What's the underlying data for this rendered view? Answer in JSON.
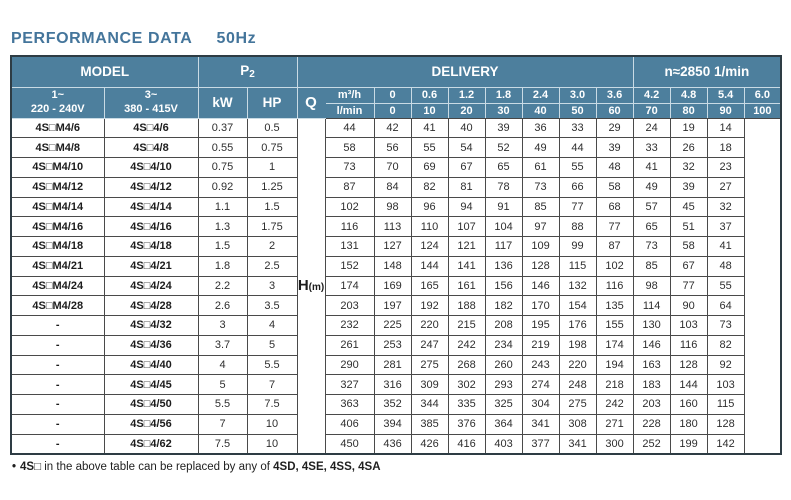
{
  "title": "PERFORMANCE DATA",
  "frequency": "50Hz",
  "colors": {
    "header_bg": "#4d7f9d",
    "title_text": "#44759b"
  },
  "table": {
    "header": {
      "model_label": "MODEL",
      "p2_base": "P",
      "p2_sub": "2",
      "delivery_label": "DELIVERY",
      "speed_label": "n≈2850 1/min",
      "single_phase_line1": "1~",
      "single_phase_line2": "220 - 240V",
      "three_phase_line1": "3~",
      "three_phase_line2": "380 - 415V",
      "kw_label": "kW",
      "hp_label": "HP",
      "q_label": "Q",
      "unit_m3h": "m³/h",
      "unit_lmin": "l/min",
      "flow_m3h": [
        "0",
        "0.6",
        "1.2",
        "1.8",
        "2.4",
        "3.0",
        "3.6",
        "4.2",
        "4.8",
        "5.4",
        "6.0"
      ],
      "flow_lmin": [
        "0",
        "10",
        "20",
        "30",
        "40",
        "50",
        "60",
        "70",
        "80",
        "90",
        "100"
      ]
    },
    "head_label": "H",
    "head_unit": "(m)",
    "rows": [
      {
        "model_1ph": "4S□M4/6",
        "model_3ph": "4S□4/6",
        "kw": "0.37",
        "hp": "0.5",
        "h_values": [
          "44",
          "42",
          "41",
          "40",
          "39",
          "36",
          "33",
          "29",
          "24",
          "19",
          "14"
        ]
      },
      {
        "model_1ph": "4S□M4/8",
        "model_3ph": "4S□4/8",
        "kw": "0.55",
        "hp": "0.75",
        "h_values": [
          "58",
          "56",
          "55",
          "54",
          "52",
          "49",
          "44",
          "39",
          "33",
          "26",
          "18"
        ]
      },
      {
        "model_1ph": "4S□M4/10",
        "model_3ph": "4S□4/10",
        "kw": "0.75",
        "hp": "1",
        "h_values": [
          "73",
          "70",
          "69",
          "67",
          "65",
          "61",
          "55",
          "48",
          "41",
          "32",
          "23"
        ]
      },
      {
        "model_1ph": "4S□M4/12",
        "model_3ph": "4S□4/12",
        "kw": "0.92",
        "hp": "1.25",
        "h_values": [
          "87",
          "84",
          "82",
          "81",
          "78",
          "73",
          "66",
          "58",
          "49",
          "39",
          "27"
        ]
      },
      {
        "model_1ph": "4S□M4/14",
        "model_3ph": "4S□4/14",
        "kw": "1.1",
        "hp": "1.5",
        "h_values": [
          "102",
          "98",
          "96",
          "94",
          "91",
          "85",
          "77",
          "68",
          "57",
          "45",
          "32"
        ]
      },
      {
        "model_1ph": "4S□M4/16",
        "model_3ph": "4S□4/16",
        "kw": "1.3",
        "hp": "1.75",
        "h_values": [
          "116",
          "113",
          "110",
          "107",
          "104",
          "97",
          "88",
          "77",
          "65",
          "51",
          "37"
        ]
      },
      {
        "model_1ph": "4S□M4/18",
        "model_3ph": "4S□4/18",
        "kw": "1.5",
        "hp": "2",
        "h_values": [
          "131",
          "127",
          "124",
          "121",
          "117",
          "109",
          "99",
          "87",
          "73",
          "58",
          "41"
        ]
      },
      {
        "model_1ph": "4S□M4/21",
        "model_3ph": "4S□4/21",
        "kw": "1.8",
        "hp": "2.5",
        "h_values": [
          "152",
          "148",
          "144",
          "141",
          "136",
          "128",
          "115",
          "102",
          "85",
          "67",
          "48"
        ]
      },
      {
        "model_1ph": "4S□M4/24",
        "model_3ph": "4S□4/24",
        "kw": "2.2",
        "hp": "3",
        "h_values": [
          "174",
          "169",
          "165",
          "161",
          "156",
          "146",
          "132",
          "116",
          "98",
          "77",
          "55"
        ]
      },
      {
        "model_1ph": "4S□M4/28",
        "model_3ph": "4S□4/28",
        "kw": "2.6",
        "hp": "3.5",
        "h_values": [
          "203",
          "197",
          "192",
          "188",
          "182",
          "170",
          "154",
          "135",
          "114",
          "90",
          "64"
        ]
      },
      {
        "model_1ph": "-",
        "model_3ph": "4S□4/32",
        "kw": "3",
        "hp": "4",
        "h_values": [
          "232",
          "225",
          "220",
          "215",
          "208",
          "195",
          "176",
          "155",
          "130",
          "103",
          "73"
        ]
      },
      {
        "model_1ph": "-",
        "model_3ph": "4S□4/36",
        "kw": "3.7",
        "hp": "5",
        "h_values": [
          "261",
          "253",
          "247",
          "242",
          "234",
          "219",
          "198",
          "174",
          "146",
          "116",
          "82"
        ]
      },
      {
        "model_1ph": "-",
        "model_3ph": "4S□4/40",
        "kw": "4",
        "hp": "5.5",
        "h_values": [
          "290",
          "281",
          "275",
          "268",
          "260",
          "243",
          "220",
          "194",
          "163",
          "128",
          "92"
        ]
      },
      {
        "model_1ph": "-",
        "model_3ph": "4S□4/45",
        "kw": "5",
        "hp": "7",
        "h_values": [
          "327",
          "316",
          "309",
          "302",
          "293",
          "274",
          "248",
          "218",
          "183",
          "144",
          "103"
        ]
      },
      {
        "model_1ph": "-",
        "model_3ph": "4S□4/50",
        "kw": "5.5",
        "hp": "7.5",
        "h_values": [
          "363",
          "352",
          "344",
          "335",
          "325",
          "304",
          "275",
          "242",
          "203",
          "160",
          "115"
        ]
      },
      {
        "model_1ph": "-",
        "model_3ph": "4S□4/56",
        "kw": "7",
        "hp": "10",
        "h_values": [
          "406",
          "394",
          "385",
          "376",
          "364",
          "341",
          "308",
          "271",
          "228",
          "180",
          "128"
        ]
      },
      {
        "model_1ph": "-",
        "model_3ph": "4S□4/62",
        "kw": "7.5",
        "hp": "10",
        "h_values": [
          "450",
          "436",
          "426",
          "416",
          "403",
          "377",
          "341",
          "300",
          "252",
          "199",
          "142"
        ]
      }
    ]
  },
  "footnote": {
    "bullet": "•",
    "model_placeholder": "4S□",
    "text": "in the above table can be replaced by any of",
    "replacements": "4SD, 4SE, 4SS, 4SA"
  }
}
